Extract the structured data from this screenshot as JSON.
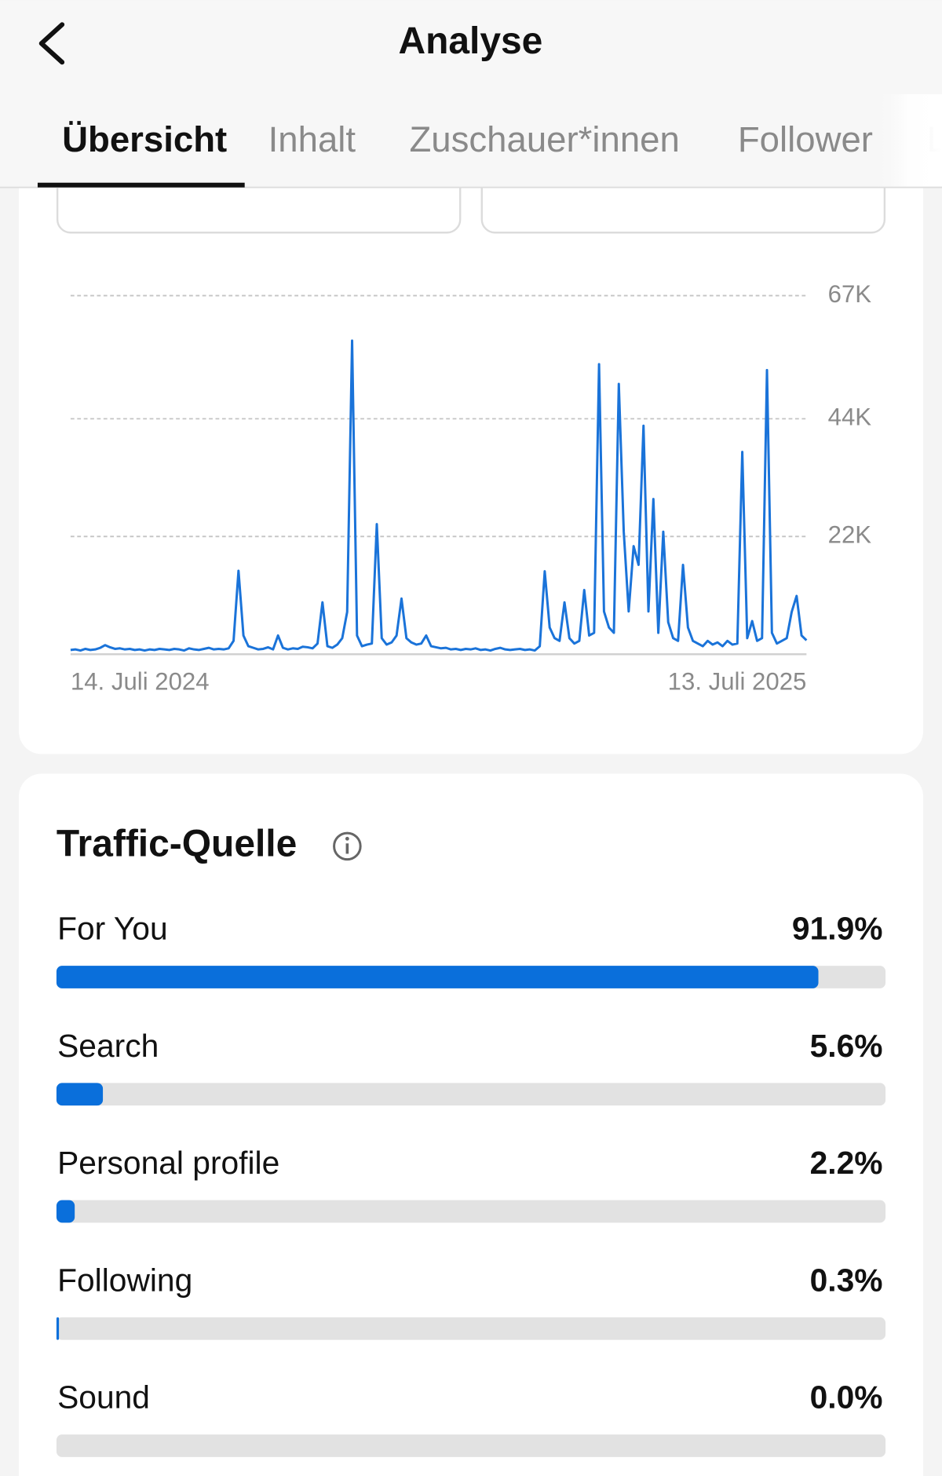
{
  "header": {
    "title": "Analyse",
    "tabs": [
      "Übersicht",
      "Inhalt",
      "Zuschauer*innen",
      "Follower",
      "L"
    ]
  },
  "chart_data": [
    {
      "type": "line",
      "color": "#1a73d9",
      "grid": true,
      "categories": [
        "14. Juli 2024",
        null,
        null,
        null,
        null,
        null,
        null,
        null,
        null,
        null,
        null,
        null,
        null,
        null,
        null,
        null,
        null,
        null,
        null,
        null,
        null,
        null,
        null,
        null,
        null,
        null,
        null,
        null,
        null,
        null,
        null,
        null,
        null,
        null,
        null,
        null,
        null,
        null,
        null,
        null,
        null,
        null,
        null,
        null,
        null,
        null,
        null,
        null,
        null,
        null,
        null,
        null,
        null,
        null,
        null,
        null,
        null,
        null,
        null,
        null,
        null,
        null,
        null,
        null,
        null,
        null,
        null,
        null,
        null,
        null,
        null,
        null,
        null,
        null,
        null,
        null,
        null,
        null,
        null,
        null,
        null,
        null,
        null,
        null,
        null,
        null,
        null,
        null,
        null,
        null,
        null,
        null,
        null,
        null,
        null,
        null,
        null,
        null,
        null,
        null,
        null,
        null,
        null,
        null,
        null,
        null,
        null,
        null,
        null,
        null,
        null,
        null,
        null,
        null,
        null,
        null,
        null,
        null,
        null,
        null,
        null,
        null,
        null,
        null,
        null,
        null,
        null,
        null,
        null,
        null,
        null,
        null,
        null,
        null,
        null,
        null,
        null,
        null,
        null,
        null,
        null,
        null,
        null,
        null,
        null,
        null,
        null,
        null,
        null,
        "13. Juli 2025"
      ],
      "values": [
        800,
        900,
        700,
        1000,
        800,
        900,
        1200,
        1700,
        1300,
        1000,
        1100,
        900,
        1000,
        800,
        900,
        700,
        900,
        800,
        1000,
        900,
        800,
        1000,
        900,
        700,
        1100,
        900,
        800,
        1000,
        1200,
        900,
        1000,
        900,
        1100,
        2500,
        15600,
        3500,
        1500,
        1200,
        900,
        1000,
        1300,
        900,
        3500,
        1200,
        900,
        1100,
        1000,
        1400,
        1300,
        1100,
        2000,
        9700,
        1500,
        1200,
        1800,
        3000,
        7900,
        58600,
        3500,
        1500,
        1800,
        2000,
        24300,
        3000,
        1800,
        2200,
        3500,
        10400,
        3000,
        2200,
        1800,
        2000,
        3500,
        1500,
        1300,
        1100,
        1200,
        900,
        1000,
        800,
        1000,
        900,
        1100,
        800,
        900,
        700,
        1000,
        1200,
        900,
        800,
        900,
        1000,
        800,
        900,
        700,
        1500,
        15500,
        5000,
        3000,
        2500,
        9700,
        3000,
        2000,
        2500,
        12000,
        3500,
        4000,
        54200,
        8000,
        5000,
        4000,
        50500,
        22900,
        8000,
        20200,
        16700,
        42700,
        8000,
        29000,
        4000,
        22900,
        6000,
        3000,
        2500,
        16700,
        5000,
        2500,
        2000,
        1500,
        2500,
        1800,
        2200,
        1500,
        2500,
        1800,
        2000,
        37800,
        3000,
        6200,
        2500,
        3000,
        53100,
        4000,
        2000,
        2500,
        3000,
        7900,
        10900,
        3500,
        2600
      ],
      "ylim": [
        0,
        67000
      ],
      "yticks": [
        {
          "value": 22000,
          "label": "22K"
        },
        {
          "value": 44000,
          "label": "44K"
        },
        {
          "value": 67000,
          "label": "67K"
        }
      ]
    },
    {
      "type": "bar",
      "title": "Traffic-Quelle",
      "color": "#0a6fdb",
      "categories": [
        "For You",
        "Search",
        "Personal profile",
        "Following",
        "Sound"
      ],
      "values": [
        91.9,
        5.6,
        2.2,
        0.3,
        0.0
      ],
      "value_labels": [
        "91.9%",
        "5.6%",
        "2.2%",
        "0.3%",
        "0.0%"
      ],
      "xlim": [
        0,
        100
      ]
    }
  ]
}
